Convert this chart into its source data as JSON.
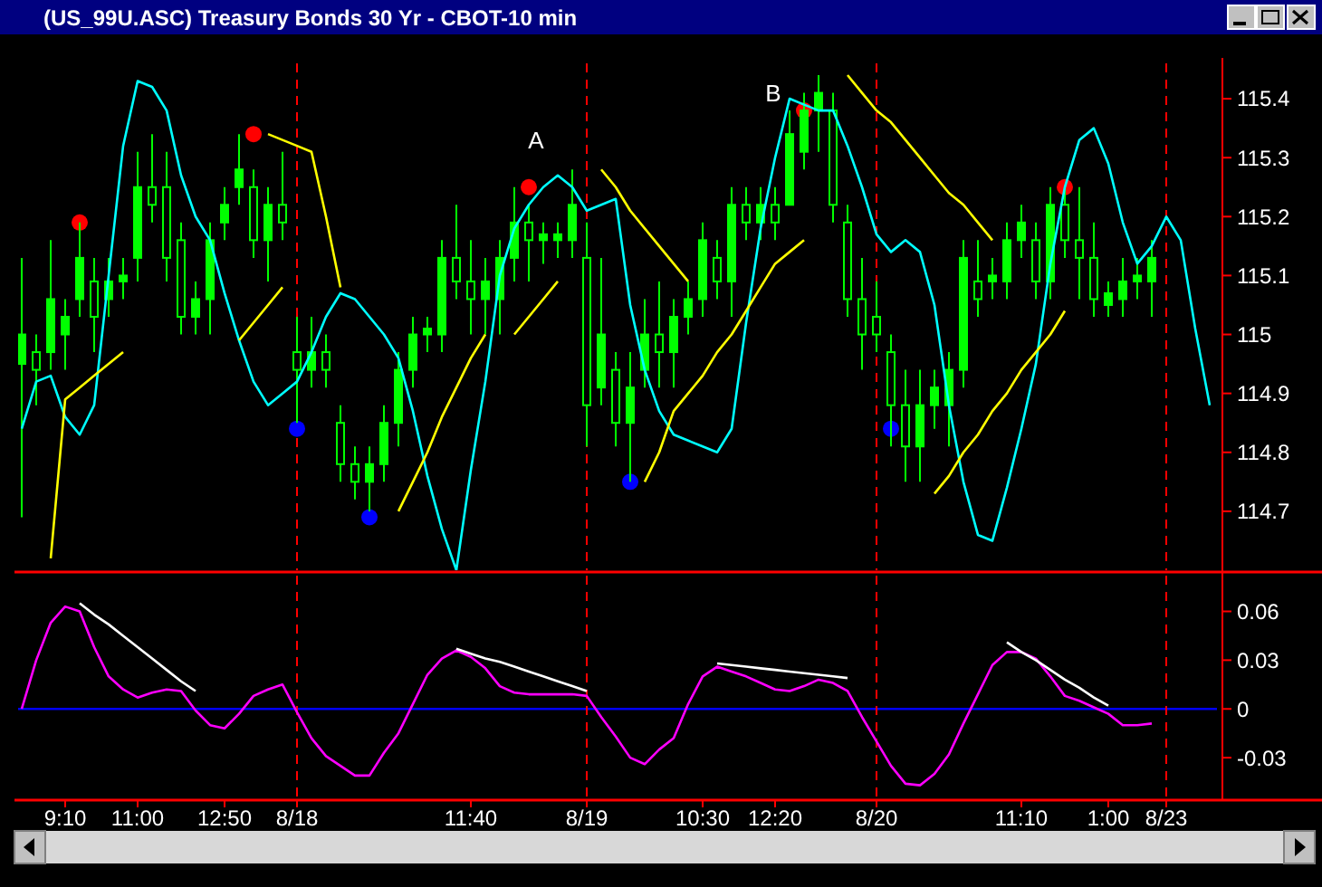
{
  "chart_data": [
    {
      "type": "candlestick",
      "title": "(US_99U.ASC) Treasury Bonds 30 Yr - CBOT-10 min",
      "color": "#00ff00",
      "tick_labels": "y",
      "categories": [
        null,
        null,
        null,
        "9:10",
        null,
        null,
        null,
        null,
        "11:00",
        null,
        null,
        null,
        null,
        null,
        "12:50",
        null,
        null,
        null,
        null,
        "8/18",
        null,
        null,
        null,
        null,
        null,
        null,
        null,
        null,
        null,
        null,
        null,
        "11:40",
        null,
        null,
        null,
        null,
        null,
        null,
        null,
        "8/19",
        null,
        null,
        null,
        null,
        null,
        null,
        null,
        "10:30",
        null,
        null,
        null,
        null,
        "12:20",
        null,
        null,
        null,
        null,
        null,
        null,
        "8/20",
        null,
        null,
        null,
        null,
        null,
        null,
        null,
        null,
        null,
        "11:10",
        null,
        null,
        null,
        null,
        null,
        "1:00",
        null,
        null,
        null,
        "8/23",
        null,
        null,
        null
      ],
      "ylim": [
        114.6,
        115.46
      ],
      "yticks": [
        114.7,
        114.8,
        114.9,
        115,
        115.1,
        115.2,
        115.3,
        115.4
      ],
      "ohlc": [
        [
          114.95,
          115.13,
          114.69,
          115.0
        ],
        [
          114.97,
          115.0,
          114.88,
          114.94
        ],
        [
          114.97,
          115.16,
          114.94,
          115.06
        ],
        [
          115.0,
          115.06,
          114.94,
          115.03
        ],
        [
          115.06,
          115.19,
          115.03,
          115.13
        ],
        [
          115.09,
          115.13,
          114.97,
          115.03
        ],
        [
          115.06,
          115.13,
          115.03,
          115.09
        ],
        [
          115.09,
          115.13,
          115.06,
          115.1
        ],
        [
          115.13,
          115.31,
          115.09,
          115.25
        ],
        [
          115.25,
          115.34,
          115.19,
          115.22
        ],
        [
          115.25,
          115.31,
          115.09,
          115.13
        ],
        [
          115.16,
          115.19,
          115.0,
          115.03
        ],
        [
          115.03,
          115.09,
          115.0,
          115.06
        ],
        [
          115.06,
          115.19,
          115.0,
          115.16
        ],
        [
          115.19,
          115.25,
          115.16,
          115.22
        ],
        [
          115.25,
          115.34,
          115.22,
          115.28
        ],
        [
          115.25,
          115.28,
          115.13,
          115.16
        ],
        [
          115.16,
          115.25,
          115.09,
          115.22
        ],
        [
          115.22,
          115.31,
          115.16,
          115.19
        ],
        [
          114.97,
          115.03,
          114.85,
          114.94
        ],
        [
          114.94,
          115.03,
          114.91,
          114.97
        ],
        [
          114.97,
          115.0,
          114.91,
          114.94
        ],
        [
          114.85,
          114.88,
          114.75,
          114.78
        ],
        [
          114.78,
          114.81,
          114.72,
          114.75
        ],
        [
          114.75,
          114.81,
          114.7,
          114.78
        ],
        [
          114.78,
          114.88,
          114.75,
          114.85
        ],
        [
          114.85,
          114.97,
          114.81,
          114.94
        ],
        [
          114.94,
          115.03,
          114.91,
          115.0
        ],
        [
          115.0,
          115.03,
          114.97,
          115.01
        ],
        [
          115.0,
          115.16,
          114.97,
          115.13
        ],
        [
          115.13,
          115.22,
          115.06,
          115.09
        ],
        [
          115.09,
          115.16,
          115.0,
          115.06
        ],
        [
          115.06,
          115.13,
          115.0,
          115.09
        ],
        [
          115.06,
          115.16,
          115.0,
          115.13
        ],
        [
          115.13,
          115.25,
          115.09,
          115.19
        ],
        [
          115.19,
          115.22,
          115.09,
          115.16
        ],
        [
          115.16,
          115.19,
          115.12,
          115.17
        ],
        [
          115.16,
          115.19,
          115.13,
          115.17
        ],
        [
          115.16,
          115.28,
          115.13,
          115.22
        ],
        [
          115.13,
          115.19,
          114.81,
          114.88
        ],
        [
          114.91,
          115.13,
          114.88,
          115.0
        ],
        [
          114.94,
          114.97,
          114.81,
          114.85
        ],
        [
          114.85,
          114.97,
          114.75,
          114.91
        ],
        [
          114.94,
          115.06,
          114.91,
          115.0
        ],
        [
          115.0,
          115.09,
          114.91,
          114.97
        ],
        [
          114.97,
          115.06,
          114.91,
          115.03
        ],
        [
          115.03,
          115.09,
          115.0,
          115.06
        ],
        [
          115.06,
          115.19,
          115.03,
          115.16
        ],
        [
          115.13,
          115.16,
          115.06,
          115.09
        ],
        [
          115.09,
          115.25,
          115.03,
          115.22
        ],
        [
          115.22,
          115.25,
          115.16,
          115.19
        ],
        [
          115.19,
          115.25,
          115.16,
          115.22
        ],
        [
          115.22,
          115.25,
          115.16,
          115.19
        ],
        [
          115.22,
          115.38,
          115.22,
          115.34
        ],
        [
          115.31,
          115.41,
          115.28,
          115.38
        ],
        [
          115.38,
          115.44,
          115.31,
          115.41
        ],
        [
          115.38,
          115.41,
          115.19,
          115.22
        ],
        [
          115.19,
          115.22,
          115.03,
          115.06
        ],
        [
          115.06,
          115.13,
          114.94,
          115.0
        ],
        [
          115.03,
          115.09,
          114.97,
          115.0
        ],
        [
          114.97,
          115.0,
          114.81,
          114.88
        ],
        [
          114.88,
          114.94,
          114.75,
          114.81
        ],
        [
          114.81,
          114.94,
          114.75,
          114.88
        ],
        [
          114.88,
          114.94,
          114.84,
          114.91
        ],
        [
          114.88,
          114.97,
          114.81,
          114.94
        ],
        [
          114.94,
          115.16,
          114.91,
          115.13
        ],
        [
          115.09,
          115.16,
          115.03,
          115.06
        ],
        [
          115.09,
          115.13,
          115.06,
          115.1
        ],
        [
          115.09,
          115.19,
          115.06,
          115.16
        ],
        [
          115.16,
          115.22,
          115.13,
          115.19
        ],
        [
          115.16,
          115.19,
          115.06,
          115.09
        ],
        [
          115.09,
          115.25,
          115.06,
          115.22
        ],
        [
          115.22,
          115.25,
          115.13,
          115.16
        ],
        [
          115.16,
          115.25,
          115.06,
          115.13
        ],
        [
          115.13,
          115.19,
          115.03,
          115.06
        ],
        [
          115.05,
          115.09,
          115.03,
          115.07
        ],
        [
          115.06,
          115.13,
          115.03,
          115.09
        ],
        [
          115.09,
          115.13,
          115.06,
          115.1
        ],
        [
          115.09,
          115.16,
          115.03,
          115.13
        ],
        null,
        null,
        null,
        null
      ],
      "series": [
        {
          "type": "line",
          "color": "#00ffff",
          "values": [
            114.84,
            114.92,
            114.93,
            114.86,
            114.83,
            114.88,
            115.1,
            115.32,
            115.43,
            115.42,
            115.38,
            115.27,
            115.2,
            115.16,
            115.07,
            114.99,
            114.92,
            114.88,
            114.9,
            114.92,
            114.97,
            115.03,
            115.07,
            115.06,
            115.03,
            115.0,
            114.96,
            114.87,
            114.76,
            114.67,
            114.6,
            114.77,
            114.92,
            115.1,
            115.18,
            115.22,
            115.25,
            115.27,
            115.25,
            115.21,
            115.22,
            115.23,
            115.05,
            114.94,
            114.87,
            114.83,
            114.82,
            114.81,
            114.8,
            114.84,
            115.02,
            115.18,
            115.3,
            115.4,
            115.39,
            115.38,
            115.38,
            115.32,
            115.25,
            115.17,
            115.14,
            115.16,
            115.14,
            115.05,
            114.88,
            114.75,
            114.66,
            114.65,
            114.74,
            114.84,
            114.95,
            115.12,
            115.25,
            115.33,
            115.35,
            115.29,
            115.19,
            115.12,
            115.15,
            115.2,
            115.16,
            115.01,
            114.88
          ]
        },
        {
          "type": "scatter",
          "color": "#ff0000",
          "marker": "circle",
          "values": [
            null,
            null,
            null,
            null,
            115.19,
            null,
            null,
            null,
            null,
            null,
            null,
            null,
            null,
            null,
            null,
            null,
            115.34,
            null,
            null,
            null,
            null,
            null,
            null,
            null,
            null,
            null,
            null,
            null,
            null,
            null,
            null,
            null,
            null,
            null,
            null,
            115.25,
            null,
            null,
            null,
            null,
            null,
            null,
            null,
            null,
            null,
            null,
            null,
            null,
            null,
            null,
            null,
            null,
            null,
            null,
            115.38,
            null,
            null,
            null,
            null,
            null,
            null,
            null,
            null,
            null,
            null,
            null,
            null,
            null,
            null,
            null,
            null,
            null,
            115.25,
            null,
            null,
            null,
            null,
            null,
            null,
            null,
            null,
            null,
            null
          ]
        },
        {
          "type": "scatter",
          "color": "#0000ff",
          "marker": "circle",
          "values": [
            null,
            null,
            null,
            null,
            null,
            null,
            null,
            null,
            null,
            null,
            null,
            null,
            null,
            null,
            null,
            null,
            null,
            null,
            null,
            114.84,
            null,
            null,
            null,
            null,
            114.69,
            null,
            null,
            null,
            null,
            null,
            null,
            null,
            null,
            null,
            null,
            null,
            null,
            null,
            null,
            null,
            null,
            null,
            114.75,
            null,
            null,
            null,
            null,
            null,
            null,
            null,
            null,
            null,
            null,
            null,
            null,
            null,
            null,
            null,
            null,
            null,
            114.84,
            null,
            null,
            null,
            null,
            null,
            null,
            null,
            null,
            null,
            null,
            null,
            null,
            null,
            null,
            null,
            null,
            null,
            null,
            null,
            null,
            null,
            null
          ]
        },
        {
          "type": "line",
          "color": "#ffff00",
          "values": [
            null,
            null,
            114.62,
            114.89,
            114.91,
            114.93,
            114.95,
            114.97,
            null,
            null,
            null,
            null,
            null,
            null,
            null,
            114.99,
            115.02,
            115.05,
            115.08,
            null,
            null,
            null,
            null,
            null,
            null,
            null,
            114.7,
            114.75,
            114.8,
            114.86,
            114.91,
            114.96,
            115.0,
            null,
            null,
            null,
            null,
            null,
            null,
            null,
            115.28,
            115.25,
            115.21,
            115.18,
            115.15,
            115.12,
            115.09,
            null,
            null,
            null,
            null,
            null,
            null,
            null,
            null,
            null,
            null,
            115.44,
            115.41,
            115.38,
            115.36,
            115.33,
            115.3,
            115.27,
            115.24,
            115.22,
            115.19,
            115.16,
            null,
            null,
            null,
            null,
            null,
            null,
            null,
            null,
            null,
            null,
            null,
            null,
            null,
            null,
            null
          ]
        },
        {
          "type": "line",
          "color": "#ffff00",
          "values": [
            null,
            null,
            null,
            null,
            null,
            null,
            null,
            null,
            null,
            null,
            null,
            null,
            null,
            null,
            null,
            null,
            null,
            115.34,
            115.33,
            115.32,
            115.31,
            115.2,
            115.08,
            null,
            null,
            null,
            null,
            null,
            null,
            null,
            null,
            null,
            null,
            null,
            115.0,
            115.03,
            115.06,
            115.09,
            null,
            null,
            null,
            null,
            null,
            114.75,
            114.8,
            114.87,
            114.9,
            114.93,
            114.97,
            115.0,
            115.04,
            115.08,
            115.12,
            115.14,
            115.16,
            null,
            null,
            null,
            null,
            null,
            null,
            null,
            null,
            114.73,
            114.76,
            114.8,
            114.83,
            114.87,
            114.9,
            114.94,
            114.97,
            115.0,
            115.04,
            null,
            null,
            null,
            null,
            null,
            null,
            null,
            null,
            null,
            null
          ]
        }
      ],
      "annotations": [
        "A",
        "B"
      ],
      "ref_lines": [
        {
          "axis": "x",
          "value": "8/18",
          "color": "#ff0000",
          "line_style": "dashed"
        },
        {
          "axis": "x",
          "value": "8/19",
          "color": "#ff0000",
          "line_style": "dashed"
        },
        {
          "axis": "x",
          "value": "8/20",
          "color": "#ff0000",
          "line_style": "dashed"
        },
        {
          "axis": "x",
          "value": "8/23",
          "color": "#ff0000",
          "line_style": "dashed"
        }
      ]
    },
    {
      "type": "line",
      "categories": [
        null,
        null,
        null,
        "9:10",
        null,
        null,
        null,
        null,
        "11:00",
        null,
        null,
        null,
        null,
        null,
        "12:50",
        null,
        null,
        null,
        null,
        "8/18",
        null,
        null,
        null,
        null,
        null,
        null,
        null,
        null,
        null,
        null,
        null,
        "11:40",
        null,
        null,
        null,
        null,
        null,
        null,
        null,
        "8/19",
        null,
        null,
        null,
        null,
        null,
        null,
        null,
        "10:30",
        null,
        null,
        null,
        null,
        "12:20",
        null,
        null,
        null,
        null,
        null,
        null,
        "8/20",
        null,
        null,
        null,
        null,
        null,
        null,
        null,
        null,
        null,
        "11:10",
        null,
        null,
        null,
        null,
        null,
        "1:00",
        null,
        null,
        null,
        "8/23",
        null,
        null,
        null
      ],
      "ylim": [
        -0.055,
        0.082
      ],
      "yticks": [
        -0.03,
        0,
        0.03,
        0.06
      ],
      "series": [
        {
          "color": "#ff00ff",
          "values": [
            0,
            0.03,
            0.053,
            0.063,
            0.06,
            0.038,
            0.02,
            0.012,
            0.007,
            0.01,
            0.012,
            0.011,
            -0.001,
            -0.01,
            -0.012,
            -0.003,
            0.008,
            0.012,
            0.015,
            -0.002,
            -0.018,
            -0.029,
            -0.035,
            -0.041,
            -0.041,
            -0.027,
            -0.015,
            0.003,
            0.021,
            0.031,
            0.036,
            0.032,
            0.025,
            0.014,
            0.01,
            0.009,
            0.009,
            0.009,
            0.009,
            0.008,
            -0.005,
            -0.017,
            -0.03,
            -0.034,
            -0.025,
            -0.018,
            0.003,
            0.02,
            0.026,
            0.023,
            0.02,
            0.016,
            0.012,
            0.011,
            0.014,
            0.018,
            0.016,
            0.011,
            -0.005,
            -0.02,
            -0.035,
            -0.046,
            -0.047,
            -0.04,
            -0.028,
            -0.009,
            0.009,
            0.027,
            0.035,
            0.035,
            0.031,
            0.02,
            0.008,
            0.005,
            0.001,
            -0.003,
            -0.01,
            -0.01,
            -0.009,
            null,
            null,
            null,
            null
          ]
        },
        {
          "color": "#ffffff",
          "values": [
            null,
            null,
            null,
            null,
            0.065,
            0.058,
            0.052,
            0.045,
            0.038,
            0.031,
            0.024,
            0.017,
            0.011,
            null,
            null,
            null,
            null,
            null,
            null,
            null,
            null,
            null,
            null,
            null,
            null,
            null,
            null,
            null,
            null,
            null,
            0.037,
            0.034,
            0.031,
            0.029,
            0.026,
            0.023,
            0.02,
            0.017,
            0.014,
            0.011,
            null,
            null,
            null,
            null,
            null,
            null,
            null,
            null,
            0.028,
            0.027,
            0.026,
            0.025,
            0.024,
            0.023,
            0.022,
            0.021,
            0.02,
            0.019,
            null,
            null,
            null,
            null,
            null,
            null,
            null,
            null,
            null,
            null,
            0.041,
            0.035,
            0.03,
            0.024,
            0.018,
            0.013,
            0.007,
            0.002,
            null,
            null,
            null,
            null,
            null,
            null,
            null
          ]
        }
      ],
      "ref_lines": [
        {
          "axis": "y",
          "value": 0,
          "color": "#0000ff"
        },
        {
          "axis": "x",
          "value": "8/18",
          "color": "#ff0000",
          "line_style": "dashed"
        },
        {
          "axis": "x",
          "value": "8/19",
          "color": "#ff0000",
          "line_style": "dashed"
        },
        {
          "axis": "x",
          "value": "8/20",
          "color": "#ff0000",
          "line_style": "dashed"
        },
        {
          "axis": "x",
          "value": "8/23",
          "color": "#ff0000",
          "line_style": "dashed"
        }
      ]
    }
  ]
}
